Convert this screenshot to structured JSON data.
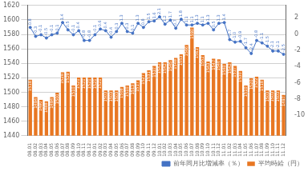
{
  "chart_data": {
    "type": "bar",
    "categories": [
      "08.01",
      "08.02",
      "08.03",
      "08.04",
      "08.05",
      "08.06",
      "08.07",
      "08.08",
      "08.09",
      "08.10",
      "08.11",
      "08.12",
      "09.01",
      "09.02",
      "09.03",
      "09.04",
      "09.05",
      "09.06",
      "09.07",
      "09.08",
      "09.09",
      "09.10",
      "09.11",
      "09.12",
      "10.01",
      "10.02",
      "10.03",
      "10.04",
      "10.05",
      "10.06",
      "10.07",
      "10.08",
      "10.09",
      "10.10",
      "10.11",
      "10.12",
      "11.01",
      "11.02",
      "11.03",
      "11.04",
      "11.05",
      "11.06",
      "11.07",
      "11.08",
      "11.09",
      "11.10",
      "11.11",
      "11.12"
    ],
    "series": [
      {
        "name": "平均時給（円）",
        "type": "bar",
        "color": "#E87722",
        "values": [
          1518,
          1494,
          1490,
          1488,
          1494,
          1500,
          1528,
          1529,
          1510,
          1521,
          1521,
          1521,
          1521,
          1521,
          1503,
          1503,
          1503,
          1508,
          1510,
          1513,
          1517,
          1527,
          1531,
          1537,
          1542,
          1542,
          1545,
          1548,
          1553,
          1566,
          1590,
          1563,
          1552,
          1543,
          1547,
          1546,
          1540,
          1542,
          1537,
          1530,
          1510,
          1520,
          1522,
          1518,
          1503,
          1503,
          1503,
          1497
        ]
      },
      {
        "name": "前年同月比増減率（％）",
        "type": "line",
        "color": "#4472C4",
        "axis": "y2",
        "marker": "o",
        "values": [
          0.8,
          -0.3,
          -0.1,
          -0.5,
          -0.1,
          0.1,
          1.4,
          0.5,
          -0.1,
          0.4,
          -0.8,
          -0.8,
          -0.1,
          0.6,
          0.4,
          -0.4,
          0.3,
          1.3,
          0.3,
          0.1,
          1.3,
          0.8,
          1.5,
          1.6,
          2.1,
          1.2,
          1.7,
          0.7,
          1.8,
          1.1,
          1.1,
          1.3,
          1.1,
          1.3,
          0.5,
          1.3,
          1.4,
          -0.7,
          -1.0,
          -0.9,
          -1.7,
          -2.4,
          -0.8,
          -1.1,
          -1.5,
          -2.1,
          -2.1,
          -2.5
        ],
        "value_labels": [
          "0.8",
          "-0.3",
          "-0.1",
          "-0.5",
          "-0.1",
          "0.1",
          "1.4",
          "0.5",
          "-0.1",
          "0.4",
          "-0.8",
          "-0.8",
          "-0.1",
          "0.6",
          "0.4",
          "-0.4",
          "0.3",
          "1.3",
          "0.3",
          "0.1",
          "1.3",
          "0.8",
          "1.5",
          "1.6",
          "2.1",
          "1.2",
          "1.7",
          "0.7",
          "1.8",
          "1.1",
          "1.1",
          "1.3",
          "1.1",
          "1.3",
          "0.5",
          "1.3",
          "1.4",
          "-0.7",
          "-1.0",
          "-0.9",
          "-1.7",
          "-2.4",
          "-0.8",
          "-1.1",
          "-1.5",
          "-2.1",
          "-2.1",
          "-2.5"
        ]
      }
    ],
    "ylim": [
      1440,
      1620
    ],
    "yticks": [
      1440,
      1460,
      1480,
      1500,
      1520,
      1540,
      1560,
      1580,
      1600,
      1620
    ],
    "y2lim": [
      -12.5,
      3.5
    ],
    "y2ticks": [
      -10,
      -8,
      -6,
      -4,
      -2,
      0,
      2
    ],
    "grid": true,
    "legend": "lower right",
    "data_labels": true
  }
}
